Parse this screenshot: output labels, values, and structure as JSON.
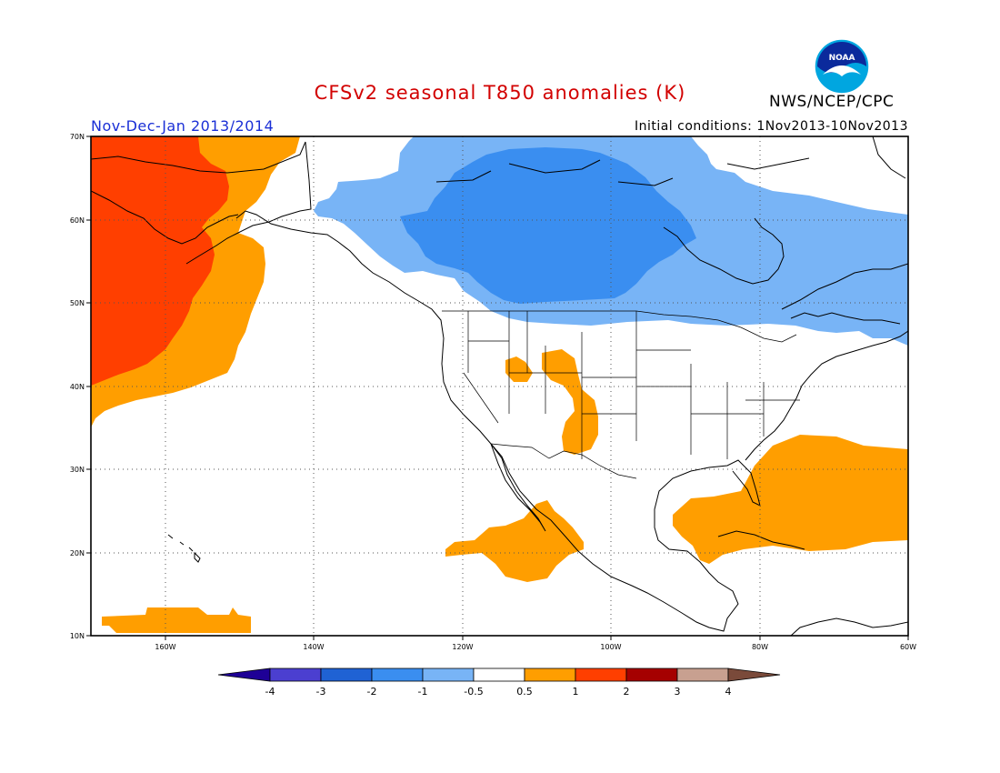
{
  "header": {
    "title": "CFSv2 seasonal T850 anomalies (K)",
    "agency": "NWS/NCEP/CPC",
    "period": "Nov-Dec-Jan 2013/2014",
    "initial_conditions": "Initial conditions: 1Nov2013-10Nov2013",
    "logo_text": "NOAA"
  },
  "map": {
    "lon_ticks": [
      {
        "value": -160,
        "label": "160W"
      },
      {
        "value": -140,
        "label": "140W"
      },
      {
        "value": -120,
        "label": "120W"
      },
      {
        "value": -100,
        "label": "100W"
      },
      {
        "value": -80,
        "label": "80W"
      },
      {
        "value": -60,
        "label": "60W"
      }
    ],
    "lat_ticks": [
      {
        "value": 10,
        "label": "10N"
      },
      {
        "value": 20,
        "label": "20N"
      },
      {
        "value": 30,
        "label": "30N"
      },
      {
        "value": 40,
        "label": "40N"
      },
      {
        "value": 50,
        "label": "50N"
      },
      {
        "value": 60,
        "label": "60N"
      },
      {
        "value": 70,
        "label": "70N"
      }
    ],
    "lon_range": [
      -170,
      -60
    ],
    "lat_range": [
      10,
      70
    ]
  },
  "colorbar": {
    "labels": [
      "-4",
      "-3",
      "-2",
      "-1",
      "-0.5",
      "0.5",
      "1",
      "2",
      "3",
      "4"
    ],
    "colors": {
      "lt_m4": "#1e0096",
      "m4_m3": "#4b3fd0",
      "m3_m2": "#1f62d4",
      "m2_m1": "#3a8ef0",
      "m1_m05": "#78b4f6",
      "m05_05": "#ffffff",
      "p05_1": "#ff9e00",
      "p1_2": "#ff3f00",
      "p2_3": "#a50000",
      "p3_4": "#c8a090",
      "gt_4": "#7a4a3a"
    }
  }
}
